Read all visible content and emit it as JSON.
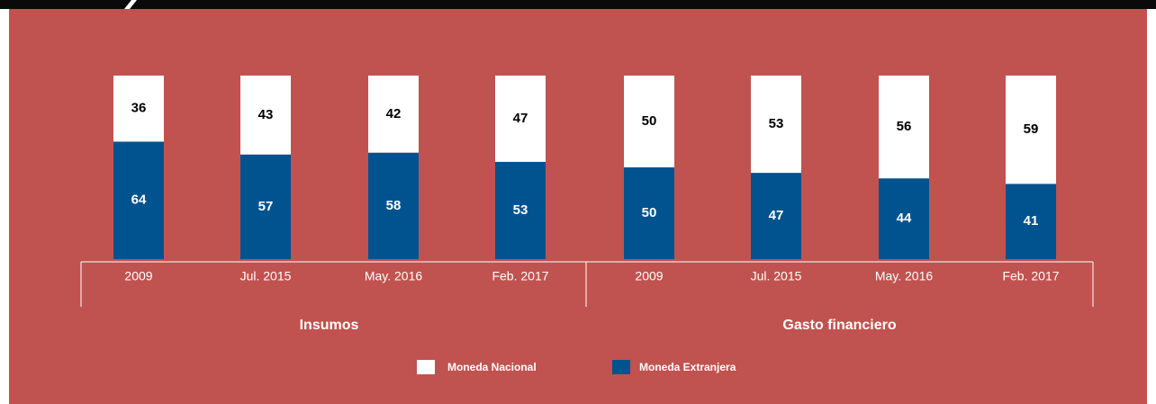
{
  "chart_data": {
    "type": "bar",
    "stacked": true,
    "groups": [
      {
        "label": "Insumos",
        "categories": [
          "2009",
          "Jul. 2015",
          "May. 2016",
          "Feb. 2017"
        ]
      },
      {
        "label": "Gasto financiero",
        "categories": [
          "2009",
          "Jul. 2015",
          "May. 2016",
          "Feb. 2017"
        ]
      }
    ],
    "series": [
      {
        "name": "Moneda Nacional",
        "color": "#ffffff",
        "label_color": "#000000",
        "values": [
          36,
          43,
          42,
          47,
          50,
          53,
          56,
          59
        ]
      },
      {
        "name": "Moneda Extranjera",
        "color": "#00538f",
        "label_color": "#ffffff",
        "values": [
          64,
          57,
          58,
          53,
          50,
          47,
          44,
          41
        ]
      }
    ],
    "ylim": [
      0,
      100
    ]
  }
}
